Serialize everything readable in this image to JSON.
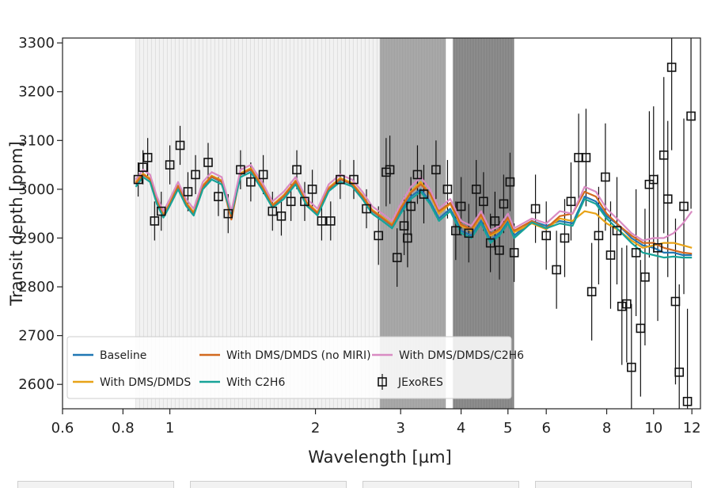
{
  "chart_data": {
    "type": "line",
    "xlabel": "Wavelength [µm]",
    "ylabel": "Transit depth [ppm]",
    "xscale": "log",
    "xlim": [
      0.6,
      12.5
    ],
    "ylim": [
      2550,
      3310
    ],
    "x_ticks": [
      {
        "value": 0.6,
        "label": "0.6"
      },
      {
        "value": 0.8,
        "label": "0.8"
      },
      {
        "value": 1,
        "label": "1"
      },
      {
        "value": 2,
        "label": "2"
      },
      {
        "value": 3,
        "label": "3"
      },
      {
        "value": 4,
        "label": "4"
      },
      {
        "value": 5,
        "label": "5"
      },
      {
        "value": 6,
        "label": "6"
      },
      {
        "value": 8,
        "label": "8"
      },
      {
        "value": 10,
        "label": "10"
      },
      {
        "value": 12,
        "label": "12"
      }
    ],
    "y_ticks": [
      {
        "value": 2600,
        "label": "2600"
      },
      {
        "value": 2700,
        "label": "2700"
      },
      {
        "value": 2800,
        "label": "2800"
      },
      {
        "value": 2900,
        "label": "2900"
      },
      {
        "value": 3000,
        "label": "3000"
      },
      {
        "value": 3100,
        "label": "3100"
      },
      {
        "value": 3200,
        "label": "3200"
      },
      {
        "value": 3300,
        "label": "3300"
      }
    ],
    "grid": false,
    "legend_position": "lower-left",
    "legend_columns": 3,
    "series": [
      {
        "name": "Baseline",
        "color": "#1f77b4",
        "x": [
          0.85,
          0.88,
          0.91,
          0.94,
          0.97,
          1.0,
          1.04,
          1.08,
          1.12,
          1.17,
          1.22,
          1.28,
          1.34,
          1.4,
          1.47,
          1.55,
          1.63,
          1.72,
          1.82,
          1.92,
          2.02,
          2.13,
          2.25,
          2.38,
          2.5,
          2.62,
          2.75,
          2.88,
          3.0,
          3.15,
          3.3,
          3.45,
          3.6,
          3.8,
          4.0,
          4.2,
          4.4,
          4.6,
          4.8,
          5.0,
          5.15,
          5.6,
          6.0,
          6.4,
          6.8,
          7.2,
          7.6,
          8.0,
          8.5,
          9.0,
          9.5,
          10.0,
          10.5,
          11.0,
          11.5,
          12.0
        ],
        "y": [
          3010,
          3030,
          3020,
          2975,
          2945,
          2970,
          3005,
          2970,
          2950,
          3005,
          3025,
          3015,
          2945,
          3030,
          3040,
          3005,
          2965,
          2985,
          3015,
          2970,
          2950,
          3000,
          3020,
          3010,
          2985,
          2955,
          2940,
          2925,
          2955,
          2985,
          3000,
          2975,
          2940,
          2960,
          2915,
          2905,
          2935,
          2895,
          2910,
          2935,
          2905,
          2935,
          2925,
          2935,
          2930,
          2985,
          2975,
          2945,
          2925,
          2900,
          2885,
          2880,
          2870,
          2870,
          2865,
          2865
        ]
      },
      {
        "name": "With DMS/DMDS",
        "color": "#e8a317",
        "x": [
          0.85,
          0.88,
          0.91,
          0.94,
          0.97,
          1.0,
          1.04,
          1.08,
          1.12,
          1.17,
          1.22,
          1.28,
          1.34,
          1.4,
          1.47,
          1.55,
          1.63,
          1.72,
          1.82,
          1.92,
          2.02,
          2.13,
          2.25,
          2.38,
          2.5,
          2.62,
          2.75,
          2.88,
          3.0,
          3.15,
          3.3,
          3.45,
          3.6,
          3.8,
          4.0,
          4.2,
          4.4,
          4.6,
          4.8,
          5.0,
          5.15,
          5.6,
          6.0,
          6.4,
          6.8,
          7.2,
          7.6,
          8.0,
          8.5,
          9.0,
          9.5,
          10.0,
          10.5,
          11.0,
          11.5,
          12.0
        ],
        "y": [
          3015,
          3032,
          3022,
          2978,
          2948,
          2972,
          3008,
          2973,
          2953,
          3008,
          3028,
          3018,
          2940,
          3033,
          3043,
          3008,
          2968,
          2988,
          3018,
          2973,
          2953,
          3003,
          3023,
          3013,
          2988,
          2958,
          2943,
          2928,
          2962,
          2995,
          3015,
          2990,
          2950,
          2970,
          2925,
          2915,
          2945,
          2905,
          2915,
          2940,
          2912,
          2930,
          2918,
          2940,
          2935,
          2955,
          2950,
          2930,
          2915,
          2895,
          2880,
          2885,
          2890,
          2890,
          2885,
          2880
        ]
      },
      {
        "name": "With DMS/DMDS (no MIRI)",
        "color": "#d2691e",
        "x": [
          0.85,
          0.88,
          0.91,
          0.94,
          0.97,
          1.0,
          1.04,
          1.08,
          1.12,
          1.17,
          1.22,
          1.28,
          1.34,
          1.4,
          1.47,
          1.55,
          1.63,
          1.72,
          1.82,
          1.92,
          2.02,
          2.13,
          2.25,
          2.38,
          2.5,
          2.62,
          2.75,
          2.88,
          3.0,
          3.15,
          3.3,
          3.45,
          3.6,
          3.8,
          4.0,
          4.2,
          4.4,
          4.6,
          4.8,
          5.0,
          5.15,
          5.6,
          6.0,
          6.4,
          6.8,
          7.2,
          7.6,
          8.0,
          8.5,
          9.0,
          9.5,
          10.0,
          10.5,
          11.0,
          11.5,
          12.0
        ],
        "y": [
          3012,
          3030,
          3020,
          2976,
          2946,
          2970,
          3006,
          2971,
          2950,
          3006,
          3026,
          3016,
          2938,
          3031,
          3041,
          3006,
          2966,
          2986,
          3016,
          2971,
          2951,
          3001,
          3021,
          3011,
          2986,
          2956,
          2941,
          2926,
          2960,
          2993,
          3010,
          2992,
          2955,
          2972,
          2928,
          2918,
          2948,
          2908,
          2918,
          2942,
          2915,
          2935,
          2920,
          2945,
          2950,
          2995,
          2985,
          2950,
          2925,
          2905,
          2890,
          2890,
          2880,
          2875,
          2870,
          2868
        ]
      },
      {
        "name": "With C2H6",
        "color": "#17a398",
        "x": [
          0.85,
          0.88,
          0.91,
          0.94,
          0.97,
          1.0,
          1.04,
          1.08,
          1.12,
          1.17,
          1.22,
          1.28,
          1.34,
          1.4,
          1.47,
          1.55,
          1.63,
          1.72,
          1.82,
          1.92,
          2.02,
          2.13,
          2.25,
          2.38,
          2.5,
          2.62,
          2.75,
          2.88,
          3.0,
          3.15,
          3.3,
          3.45,
          3.6,
          3.8,
          4.0,
          4.2,
          4.4,
          4.6,
          4.8,
          5.0,
          5.15,
          5.6,
          6.0,
          6.4,
          6.8,
          7.2,
          7.6,
          8.0,
          8.5,
          9.0,
          9.5,
          10.0,
          10.5,
          11.0,
          11.5,
          12.0
        ],
        "y": [
          3005,
          3025,
          3015,
          2970,
          2942,
          2966,
          3000,
          2966,
          2946,
          3000,
          3020,
          3010,
          2950,
          3025,
          3035,
          3000,
          2962,
          2980,
          3010,
          2966,
          2946,
          2996,
          3015,
          3006,
          2980,
          2950,
          2935,
          2920,
          2950,
          2980,
          2995,
          2970,
          2935,
          2955,
          2910,
          2900,
          2930,
          2890,
          2905,
          2930,
          2900,
          2932,
          2920,
          2930,
          2925,
          2980,
          2970,
          2940,
          2915,
          2890,
          2870,
          2865,
          2860,
          2862,
          2860,
          2860
        ]
      },
      {
        "name": "With DMS/DMDS/C2H6",
        "color": "#d98bc3",
        "x": [
          0.85,
          0.88,
          0.91,
          0.94,
          0.97,
          1.0,
          1.04,
          1.08,
          1.12,
          1.17,
          1.22,
          1.28,
          1.34,
          1.4,
          1.47,
          1.55,
          1.63,
          1.72,
          1.82,
          1.92,
          2.02,
          2.13,
          2.25,
          2.38,
          2.5,
          2.62,
          2.75,
          2.88,
          3.0,
          3.15,
          3.3,
          3.45,
          3.6,
          3.8,
          4.0,
          4.2,
          4.4,
          4.6,
          4.8,
          5.0,
          5.15,
          5.6,
          6.0,
          6.4,
          6.8,
          7.2,
          7.6,
          8.0,
          8.5,
          9.0,
          9.5,
          10.0,
          10.5,
          11.0,
          11.5,
          12.0
        ],
        "y": [
          3020,
          3040,
          3030,
          2985,
          2955,
          2980,
          3015,
          2980,
          2960,
          3015,
          3035,
          3025,
          2955,
          3040,
          3050,
          3015,
          2975,
          2995,
          3025,
          2980,
          2960,
          3010,
          3030,
          3020,
          2995,
          2965,
          2950,
          2935,
          2970,
          3005,
          3025,
          3000,
          2960,
          2980,
          2935,
          2925,
          2955,
          2915,
          2925,
          2950,
          2920,
          2940,
          2930,
          2955,
          2950,
          3005,
          2995,
          2960,
          2935,
          2910,
          2895,
          2900,
          2900,
          2910,
          2930,
          2955
        ]
      }
    ],
    "observations": {
      "name": "JExoRES",
      "color": "#111111",
      "points": [
        {
          "x": 0.86,
          "y": 3020,
          "err": 35
        },
        {
          "x": 0.88,
          "y": 3045,
          "err": 35
        },
        {
          "x": 0.9,
          "y": 3065,
          "err": 40
        },
        {
          "x": 0.93,
          "y": 2935,
          "err": 40
        },
        {
          "x": 0.96,
          "y": 2955,
          "err": 40
        },
        {
          "x": 1.0,
          "y": 3050,
          "err": 40
        },
        {
          "x": 1.05,
          "y": 3090,
          "err": 40
        },
        {
          "x": 1.09,
          "y": 2995,
          "err": 40
        },
        {
          "x": 1.13,
          "y": 3030,
          "err": 40
        },
        {
          "x": 1.2,
          "y": 3055,
          "err": 40
        },
        {
          "x": 1.26,
          "y": 2985,
          "err": 40
        },
        {
          "x": 1.32,
          "y": 2950,
          "err": 40
        },
        {
          "x": 1.4,
          "y": 3040,
          "err": 40
        },
        {
          "x": 1.47,
          "y": 3015,
          "err": 40
        },
        {
          "x": 1.56,
          "y": 3030,
          "err": 40
        },
        {
          "x": 1.63,
          "y": 2955,
          "err": 40
        },
        {
          "x": 1.7,
          "y": 2945,
          "err": 40
        },
        {
          "x": 1.78,
          "y": 2975,
          "err": 40
        },
        {
          "x": 1.83,
          "y": 3040,
          "err": 40
        },
        {
          "x": 1.9,
          "y": 2975,
          "err": 40
        },
        {
          "x": 1.97,
          "y": 3000,
          "err": 40
        },
        {
          "x": 2.06,
          "y": 2935,
          "err": 40
        },
        {
          "x": 2.15,
          "y": 2935,
          "err": 40
        },
        {
          "x": 2.25,
          "y": 3020,
          "err": 40
        },
        {
          "x": 2.4,
          "y": 3020,
          "err": 40
        },
        {
          "x": 2.55,
          "y": 2960,
          "err": 40
        },
        {
          "x": 2.7,
          "y": 2905,
          "err": 60
        },
        {
          "x": 2.8,
          "y": 3035,
          "err": 70
        },
        {
          "x": 2.85,
          "y": 3040,
          "err": 70
        },
        {
          "x": 2.95,
          "y": 2860,
          "err": 60
        },
        {
          "x": 3.05,
          "y": 2925,
          "err": 60
        },
        {
          "x": 3.1,
          "y": 2900,
          "err": 60
        },
        {
          "x": 3.15,
          "y": 2965,
          "err": 60
        },
        {
          "x": 3.25,
          "y": 3030,
          "err": 60
        },
        {
          "x": 3.35,
          "y": 2990,
          "err": 60
        },
        {
          "x": 3.55,
          "y": 3040,
          "err": 60
        },
        {
          "x": 3.75,
          "y": 3000,
          "err": 60
        },
        {
          "x": 3.9,
          "y": 2915,
          "err": 60
        },
        {
          "x": 4.0,
          "y": 2965,
          "err": 60
        },
        {
          "x": 4.15,
          "y": 2910,
          "err": 60
        },
        {
          "x": 4.3,
          "y": 3000,
          "err": 60
        },
        {
          "x": 4.45,
          "y": 2975,
          "err": 60
        },
        {
          "x": 4.6,
          "y": 2890,
          "err": 60
        },
        {
          "x": 4.7,
          "y": 2935,
          "err": 60
        },
        {
          "x": 4.8,
          "y": 2875,
          "err": 60
        },
        {
          "x": 4.9,
          "y": 2970,
          "err": 60
        },
        {
          "x": 5.05,
          "y": 3015,
          "err": 60
        },
        {
          "x": 5.15,
          "y": 2870,
          "err": 60
        },
        {
          "x": 5.7,
          "y": 2960,
          "err": 70
        },
        {
          "x": 6.0,
          "y": 2905,
          "err": 70
        },
        {
          "x": 6.3,
          "y": 2835,
          "err": 80
        },
        {
          "x": 6.55,
          "y": 2900,
          "err": 80
        },
        {
          "x": 6.75,
          "y": 2975,
          "err": 80
        },
        {
          "x": 7.0,
          "y": 3065,
          "err": 90
        },
        {
          "x": 7.25,
          "y": 3065,
          "err": 100
        },
        {
          "x": 7.45,
          "y": 2790,
          "err": 100
        },
        {
          "x": 7.7,
          "y": 2905,
          "err": 100
        },
        {
          "x": 7.95,
          "y": 3025,
          "err": 110
        },
        {
          "x": 8.15,
          "y": 2865,
          "err": 110
        },
        {
          "x": 8.4,
          "y": 2915,
          "err": 110
        },
        {
          "x": 8.6,
          "y": 2760,
          "err": 120
        },
        {
          "x": 8.8,
          "y": 2765,
          "err": 120
        },
        {
          "x": 9.0,
          "y": 2635,
          "err": 130
        },
        {
          "x": 9.2,
          "y": 2870,
          "err": 130
        },
        {
          "x": 9.4,
          "y": 2715,
          "err": 140
        },
        {
          "x": 9.6,
          "y": 2820,
          "err": 140
        },
        {
          "x": 9.8,
          "y": 3010,
          "err": 150
        },
        {
          "x": 10.0,
          "y": 3020,
          "err": 150
        },
        {
          "x": 10.2,
          "y": 2880,
          "err": 150
        },
        {
          "x": 10.5,
          "y": 3070,
          "err": 160
        },
        {
          "x": 10.7,
          "y": 2980,
          "err": 160
        },
        {
          "x": 10.9,
          "y": 3250,
          "err": 170
        },
        {
          "x": 11.1,
          "y": 2770,
          "err": 170
        },
        {
          "x": 11.3,
          "y": 2625,
          "err": 180
        },
        {
          "x": 11.55,
          "y": 2965,
          "err": 180
        },
        {
          "x": 11.75,
          "y": 2565,
          "err": 190
        },
        {
          "x": 11.95,
          "y": 3150,
          "err": 190
        }
      ]
    },
    "shaded_regions": [
      {
        "from": 0.85,
        "to": 2.72,
        "shade": "light"
      },
      {
        "from": 2.72,
        "to": 3.72,
        "shade": "medium"
      },
      {
        "from": 3.85,
        "to": 5.15,
        "shade": "dark"
      }
    ]
  }
}
